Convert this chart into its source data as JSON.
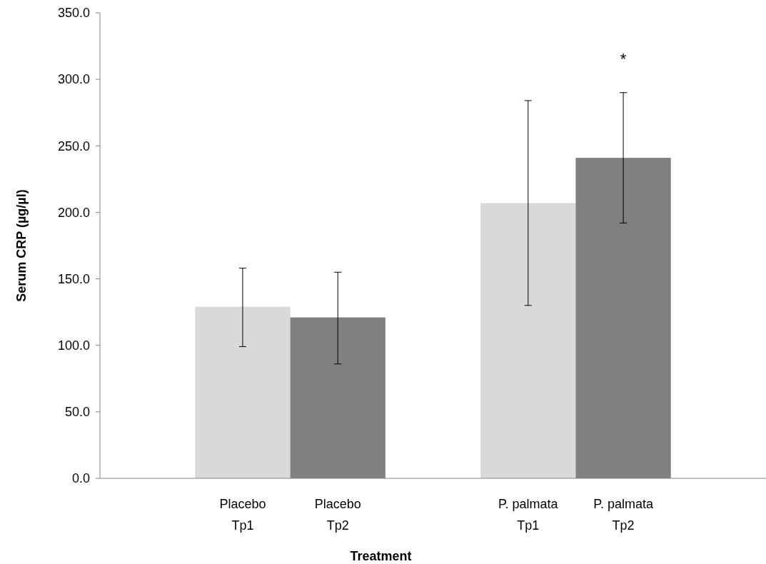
{
  "chart_data": {
    "type": "bar",
    "xlabel": "Treatment",
    "ylabel": "Serum CRP (µg/µl)",
    "categories": [
      "Placebo Tp1",
      "Placebo Tp2",
      null,
      "P. palmata Tp1",
      "P. palmata Tp2"
    ],
    "values": [
      129,
      121,
      null,
      207,
      241
    ],
    "colors": [
      "#d9d9d9",
      "#808080",
      null,
      "#d9d9d9",
      "#808080"
    ],
    "errors": [
      [
        99,
        158
      ],
      [
        86,
        155
      ],
      null,
      [
        130,
        284
      ],
      [
        192,
        290
      ]
    ],
    "ylim": [
      0,
      350
    ],
    "yticks": [
      {
        "value": 0,
        "label": "0.0"
      },
      {
        "value": 50,
        "label": "50.0"
      },
      {
        "value": 100,
        "label": "100.0"
      },
      {
        "value": 150,
        "label": "150.0"
      },
      {
        "value": 200,
        "label": "200.0"
      },
      {
        "value": 250,
        "label": "250.0"
      },
      {
        "value": 300,
        "label": "300.0"
      },
      {
        "value": 350,
        "label": "350.0"
      }
    ],
    "annotations": [
      "*"
    ],
    "grid": false
  }
}
